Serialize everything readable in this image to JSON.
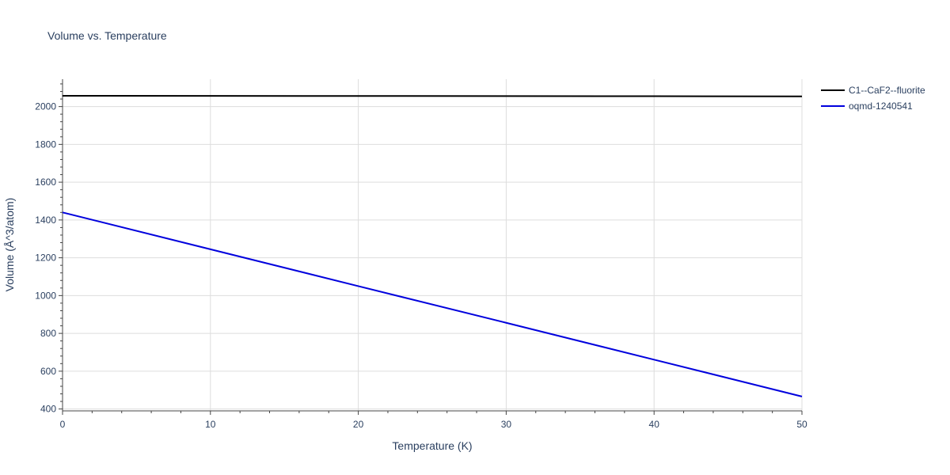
{
  "chart_data": {
    "type": "line",
    "title": "Volume vs. Temperature",
    "xlabel": "Temperature (K)",
    "ylabel": "Volume (Å^3/atom)",
    "xlim": [
      0,
      50
    ],
    "ylim": [
      390,
      2145
    ],
    "x_ticks": [
      0,
      10,
      20,
      30,
      40,
      50
    ],
    "y_ticks": [
      400,
      600,
      800,
      1000,
      1200,
      1400,
      1600,
      1800,
      2000
    ],
    "grid": true,
    "legend_position": "top-right",
    "series": [
      {
        "name": "C1--CaF2--fluorite",
        "color": "#000000",
        "x": [
          0,
          10,
          20,
          30,
          40,
          50
        ],
        "values": [
          2057,
          2056.5,
          2056,
          2055.5,
          2055,
          2054
        ]
      },
      {
        "name": "oqmd-1240541",
        "color": "#0000dd",
        "x": [
          0,
          10,
          20,
          30,
          40,
          50
        ],
        "values": [
          1440,
          1245,
          1050,
          856,
          661,
          466
        ]
      }
    ]
  }
}
